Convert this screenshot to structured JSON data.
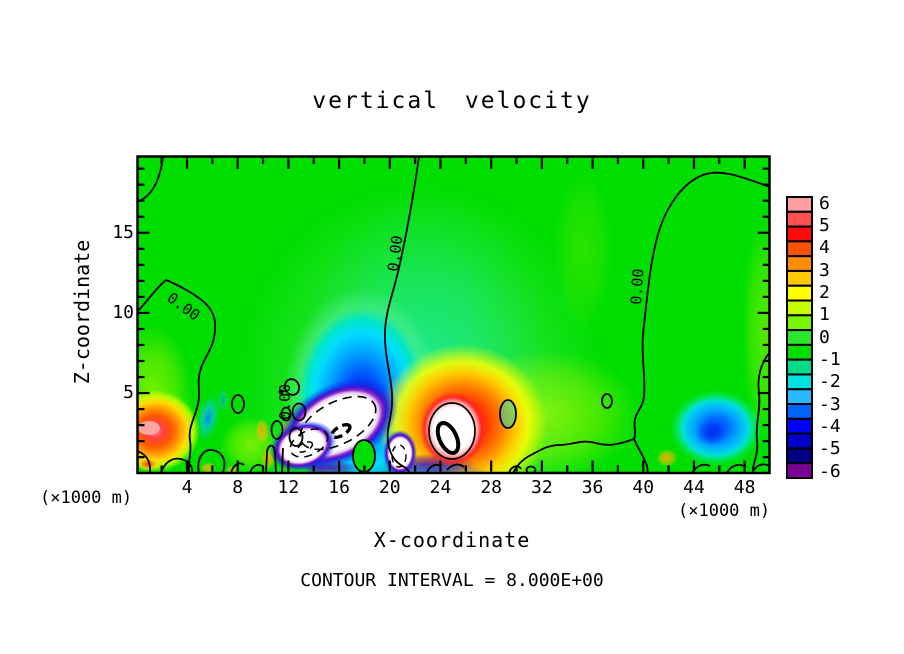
{
  "figure": {
    "title": "vertical velocity",
    "footer": "CONTOUR INTERVAL = 8.000E+00"
  },
  "chart_data": {
    "type": "filled_contour",
    "title": "vertical velocity",
    "xlabel": "X-coordinate",
    "ylabel": "Z-coordinate",
    "x_unit_label": "(×1000 m)",
    "y_unit_label": "(×1000 m)",
    "x_range_km": [
      0,
      50
    ],
    "z_range_km": [
      0,
      19.8
    ],
    "x_tick_labels": [
      "4",
      "8",
      "12",
      "16",
      "20",
      "24",
      "28",
      "32",
      "36",
      "40",
      "44",
      "48"
    ],
    "x_label_step_km": 4,
    "x_minor_tick_step_km": 2,
    "y_tick_labels": [
      "5",
      "10",
      "15"
    ],
    "y_label_step_km": 5,
    "y_minor_tick_step_km": 1,
    "grid": false,
    "contour_line_label": "0.00",
    "contour_interval": "8.000E+00",
    "colorbar": {
      "position": "right",
      "tick_labels": [
        "6",
        "5",
        "4",
        "3",
        "2",
        "1",
        "0",
        "-1",
        "-2",
        "-3",
        "-4",
        "-5",
        "-6"
      ],
      "cell_colors_top_to_bottom": [
        "#FFA0A0",
        "#FF5050",
        "#FF0A0A",
        "#FF5000",
        "#FF8C00",
        "#FFC800",
        "#FFFF00",
        "#C8FF00",
        "#78F500",
        "#2BE62B",
        "#00DE00",
        "#00DC87",
        "#00E1E1",
        "#28B9FF",
        "#0064FF",
        "#0000FF",
        "#0000C8",
        "#000082",
        "#7D0096"
      ]
    },
    "field_summary": {
      "background_color": "#00DE00",
      "features": [
        {
          "name": "left-edge updraft",
          "x_km": 1.2,
          "z_km": 3.2,
          "sign": "positive",
          "approx_peak": "≈ +5"
        },
        {
          "name": "main downdraft",
          "x_km": 15.9,
          "z_km": 2.5,
          "sign": "negative",
          "approx_peak": "< -6 (white core, dashed contours)"
        },
        {
          "name": "secondary downdraft",
          "x_km": 20.8,
          "z_km": 1.8,
          "sign": "negative",
          "approx_peak": "< -6 (small white core)"
        },
        {
          "name": "main updraft",
          "x_km": 25.0,
          "z_km": 3.0,
          "sign": "positive",
          "approx_peak": "> +6 (white core, solid contours)"
        },
        {
          "name": "right downdraft",
          "x_km": 45.7,
          "z_km": 3.0,
          "sign": "negative",
          "approx_peak": "≈ -4"
        }
      ]
    }
  }
}
